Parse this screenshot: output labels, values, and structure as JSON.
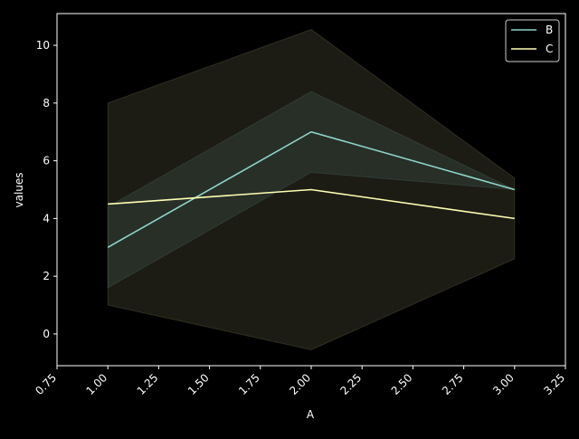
{
  "chart_data": {
    "type": "line",
    "xlabel": "A",
    "ylabel": "values",
    "xlim": [
      0.75,
      3.25
    ],
    "ylim": [
      -1.1,
      11.1
    ],
    "x_ticks": [
      0.75,
      1.0,
      1.25,
      1.5,
      1.75,
      2.0,
      2.25,
      2.5,
      2.75,
      3.0,
      3.25
    ],
    "x_tick_labels": [
      "0.75",
      "1.00",
      "1.25",
      "1.50",
      "1.75",
      "2.00",
      "2.25",
      "2.50",
      "2.75",
      "3.00",
      "3.25"
    ],
    "y_ticks": [
      0,
      2,
      4,
      6,
      8,
      10
    ],
    "y_tick_labels": [
      "0",
      "2",
      "4",
      "6",
      "8",
      "10"
    ],
    "x": [
      1,
      2,
      3
    ],
    "series": [
      {
        "name": "B",
        "color": "#8dd3c7",
        "values": [
          3.0,
          7.0,
          5.0
        ],
        "band_lower": [
          1.6,
          5.6,
          5.0
        ],
        "band_upper": [
          4.4,
          8.4,
          5.0
        ]
      },
      {
        "name": "C",
        "color": "#ffffb3",
        "values": [
          4.5,
          5.0,
          4.0
        ],
        "band_lower": [
          1.0,
          -0.55,
          2.6
        ],
        "band_upper": [
          8.0,
          10.55,
          5.4
        ]
      }
    ],
    "grid": false,
    "legend_position": "top-right",
    "background": "#000000",
    "axis_color": "#ffffff"
  }
}
